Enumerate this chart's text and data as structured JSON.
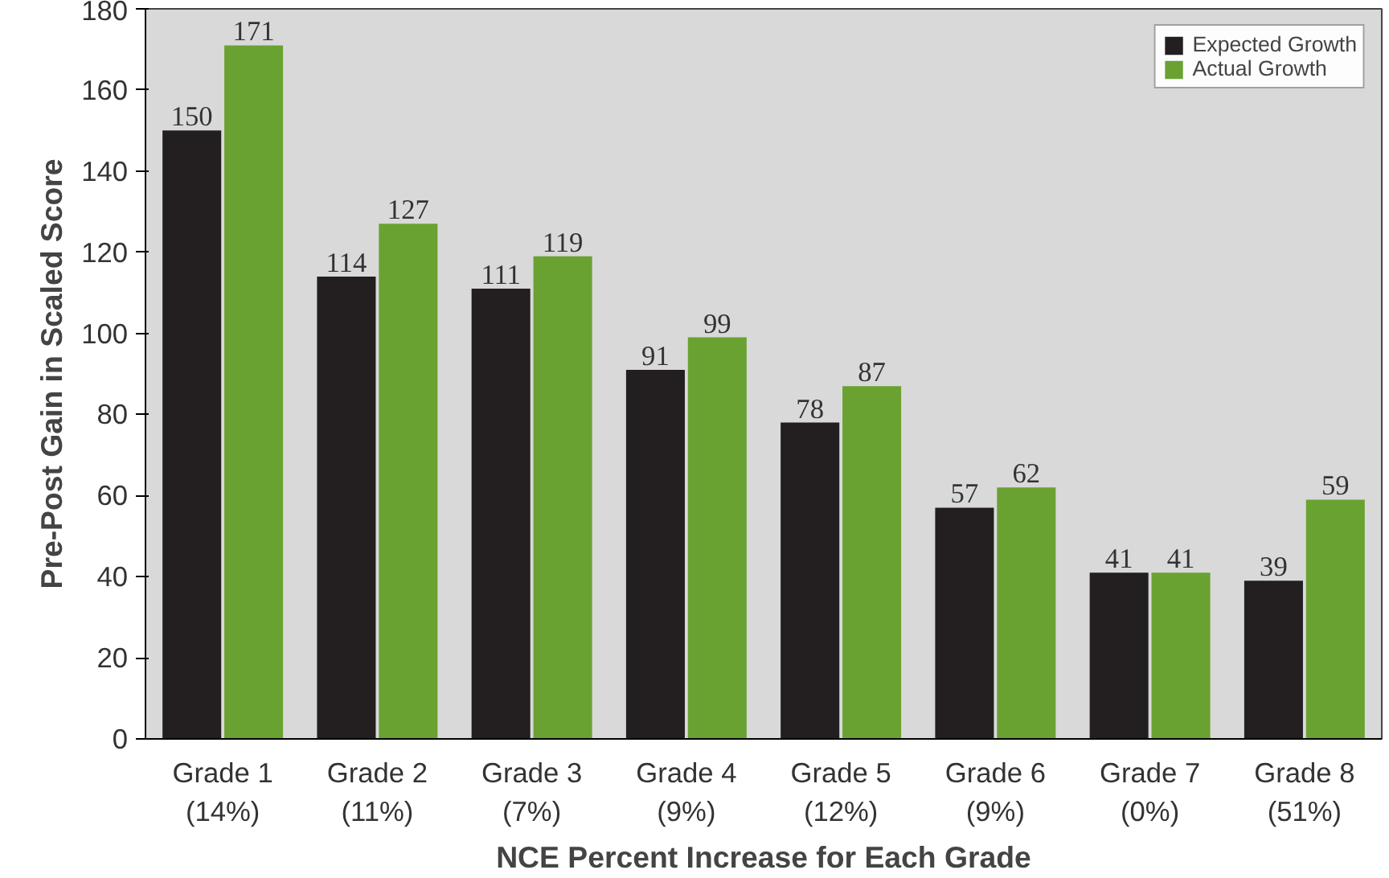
{
  "chart_data": {
    "type": "bar",
    "xlabel": "NCE Percent Increase for Each Grade",
    "ylabel": "Pre-Post Gain in Scaled Score",
    "categories": [
      "Grade 1\n(14%)",
      "Grade 2\n(11%)",
      "Grade 3\n(7%)",
      "Grade 4\n(9%)",
      "Grade 5\n(12%)",
      "Grade 6\n(9%)",
      "Grade 7\n(0%)",
      "Grade 8\n(51%)"
    ],
    "series": [
      {
        "name": "Expected Growth",
        "color": "#231f20",
        "values": [
          150,
          114,
          111,
          91,
          78,
          57,
          41,
          39
        ]
      },
      {
        "name": "Actual Growth",
        "color": "#6aa232",
        "values": [
          171,
          127,
          119,
          99,
          87,
          62,
          41,
          59
        ]
      }
    ],
    "ylim": [
      0,
      180
    ],
    "yticks": [
      0,
      20,
      40,
      60,
      80,
      100,
      120,
      140,
      160,
      180
    ],
    "data_labels": true,
    "legend": "top right",
    "grid": false
  }
}
